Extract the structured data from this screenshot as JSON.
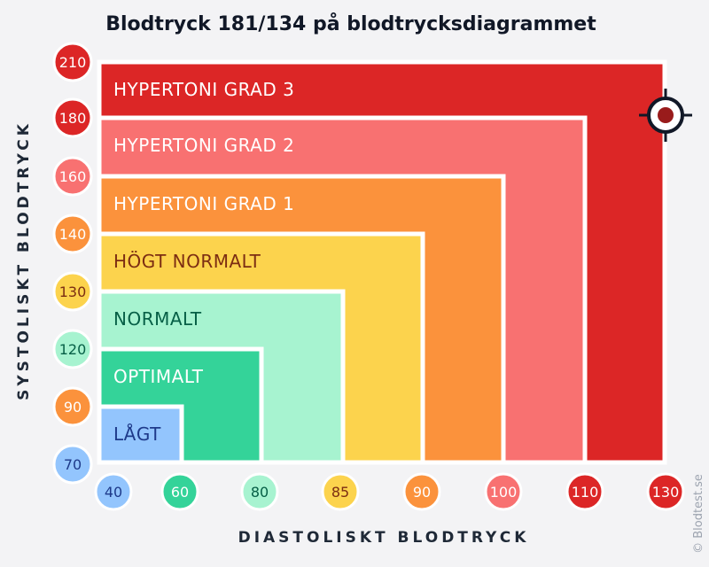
{
  "chart_data": {
    "type": "area",
    "title": "Blodtryck 181/134 på blodtrycksdiagrammet",
    "xlabel": "DIASTOLISKT BLODTRYCK",
    "ylabel": "SYSTOLISKT BLODTRYCK",
    "x_ticks": [
      "40",
      "60",
      "80",
      "85",
      "90",
      "100",
      "110",
      "130"
    ],
    "y_ticks": [
      "70",
      "90",
      "120",
      "130",
      "140",
      "160",
      "180",
      "210"
    ],
    "zones": [
      {
        "label": "HYPERTONI GRAD 3",
        "color": "#dc2626",
        "text_color": "#ffffff",
        "diastolic_max": "130",
        "systolic_max": "210"
      },
      {
        "label": "HYPERTONI GRAD 2",
        "color": "#f87171",
        "text_color": "#ffffff",
        "diastolic_max": "110",
        "systolic_max": "180"
      },
      {
        "label": "HYPERTONI GRAD 1",
        "color": "#fb923c",
        "text_color": "#ffffff",
        "diastolic_max": "100",
        "systolic_max": "160"
      },
      {
        "label": "HÖGT NORMALT",
        "color": "#fcd34d",
        "text_color": "#7c2d12",
        "diastolic_max": "90",
        "systolic_max": "140"
      },
      {
        "label": "NORMALT",
        "color": "#a7f3d0",
        "text_color": "#065f46",
        "diastolic_max": "85",
        "systolic_max": "130"
      },
      {
        "label": "OPTIMALT",
        "color": "#34d399",
        "text_color": "#ffffff",
        "diastolic_max": "80",
        "systolic_max": "120"
      },
      {
        "label": "LÅGT",
        "color": "#93c5fd",
        "text_color": "#1e3a8a",
        "diastolic_max": "60",
        "systolic_max": "90"
      }
    ],
    "tick_colors": {
      "40": "#93c5fd",
      "60": "#34d399",
      "80": "#a7f3d0",
      "85": "#fcd34d",
      "90": "#fb923c",
      "100": "#f87171",
      "110": "#dc2626",
      "130": "#dc2626",
      "70": "#93c5fd",
      "120": "#a7f3d0",
      "130y": "#fcd34d",
      "140": "#fb923c",
      "160": "#f87171",
      "180": "#dc2626",
      "210": "#dc2626"
    },
    "marker": {
      "systolic": 181,
      "diastolic": 134,
      "icon": "crosshair-icon"
    },
    "watermark": "© Blodtest.se"
  }
}
